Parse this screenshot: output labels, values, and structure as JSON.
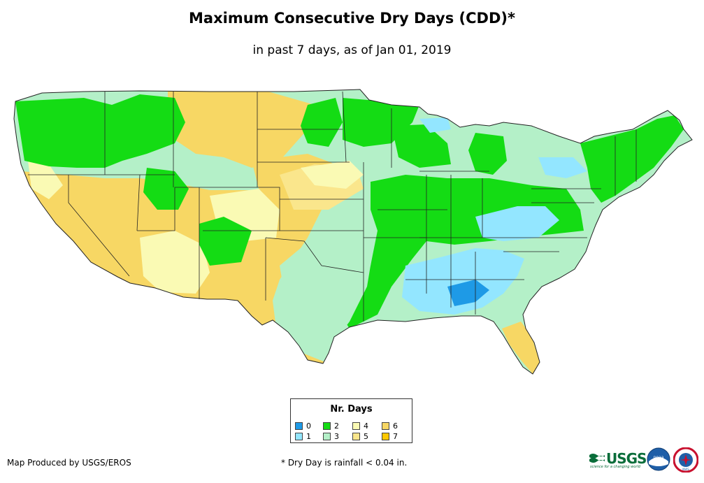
{
  "header": {
    "title": "Maximum Consecutive Dry Days (CDD)*",
    "subtitle": "in past 7 days, as of Jan 01, 2019"
  },
  "legend": {
    "title": "Nr. Days",
    "items": [
      {
        "label": "0",
        "color": "#1e9ae6"
      },
      {
        "label": "1",
        "color": "#93e6ff"
      },
      {
        "label": "2",
        "color": "#14dc14"
      },
      {
        "label": "3",
        "color": "#b4f0c8"
      },
      {
        "label": "4",
        "color": "#fafab4"
      },
      {
        "label": "5",
        "color": "#fae68c"
      },
      {
        "label": "6",
        "color": "#f7d764"
      },
      {
        "label": "7",
        "color": "#ffc800"
      }
    ]
  },
  "footer": {
    "credit": "Map Produced by USGS/EROS",
    "footnote": "* Dry Day is rainfall < 0.04 in."
  },
  "logos": {
    "usgs_text": "USGS",
    "usgs_tagline": "science for a changing world",
    "noaa_text": "noaa",
    "nws_text": "NWS"
  }
}
